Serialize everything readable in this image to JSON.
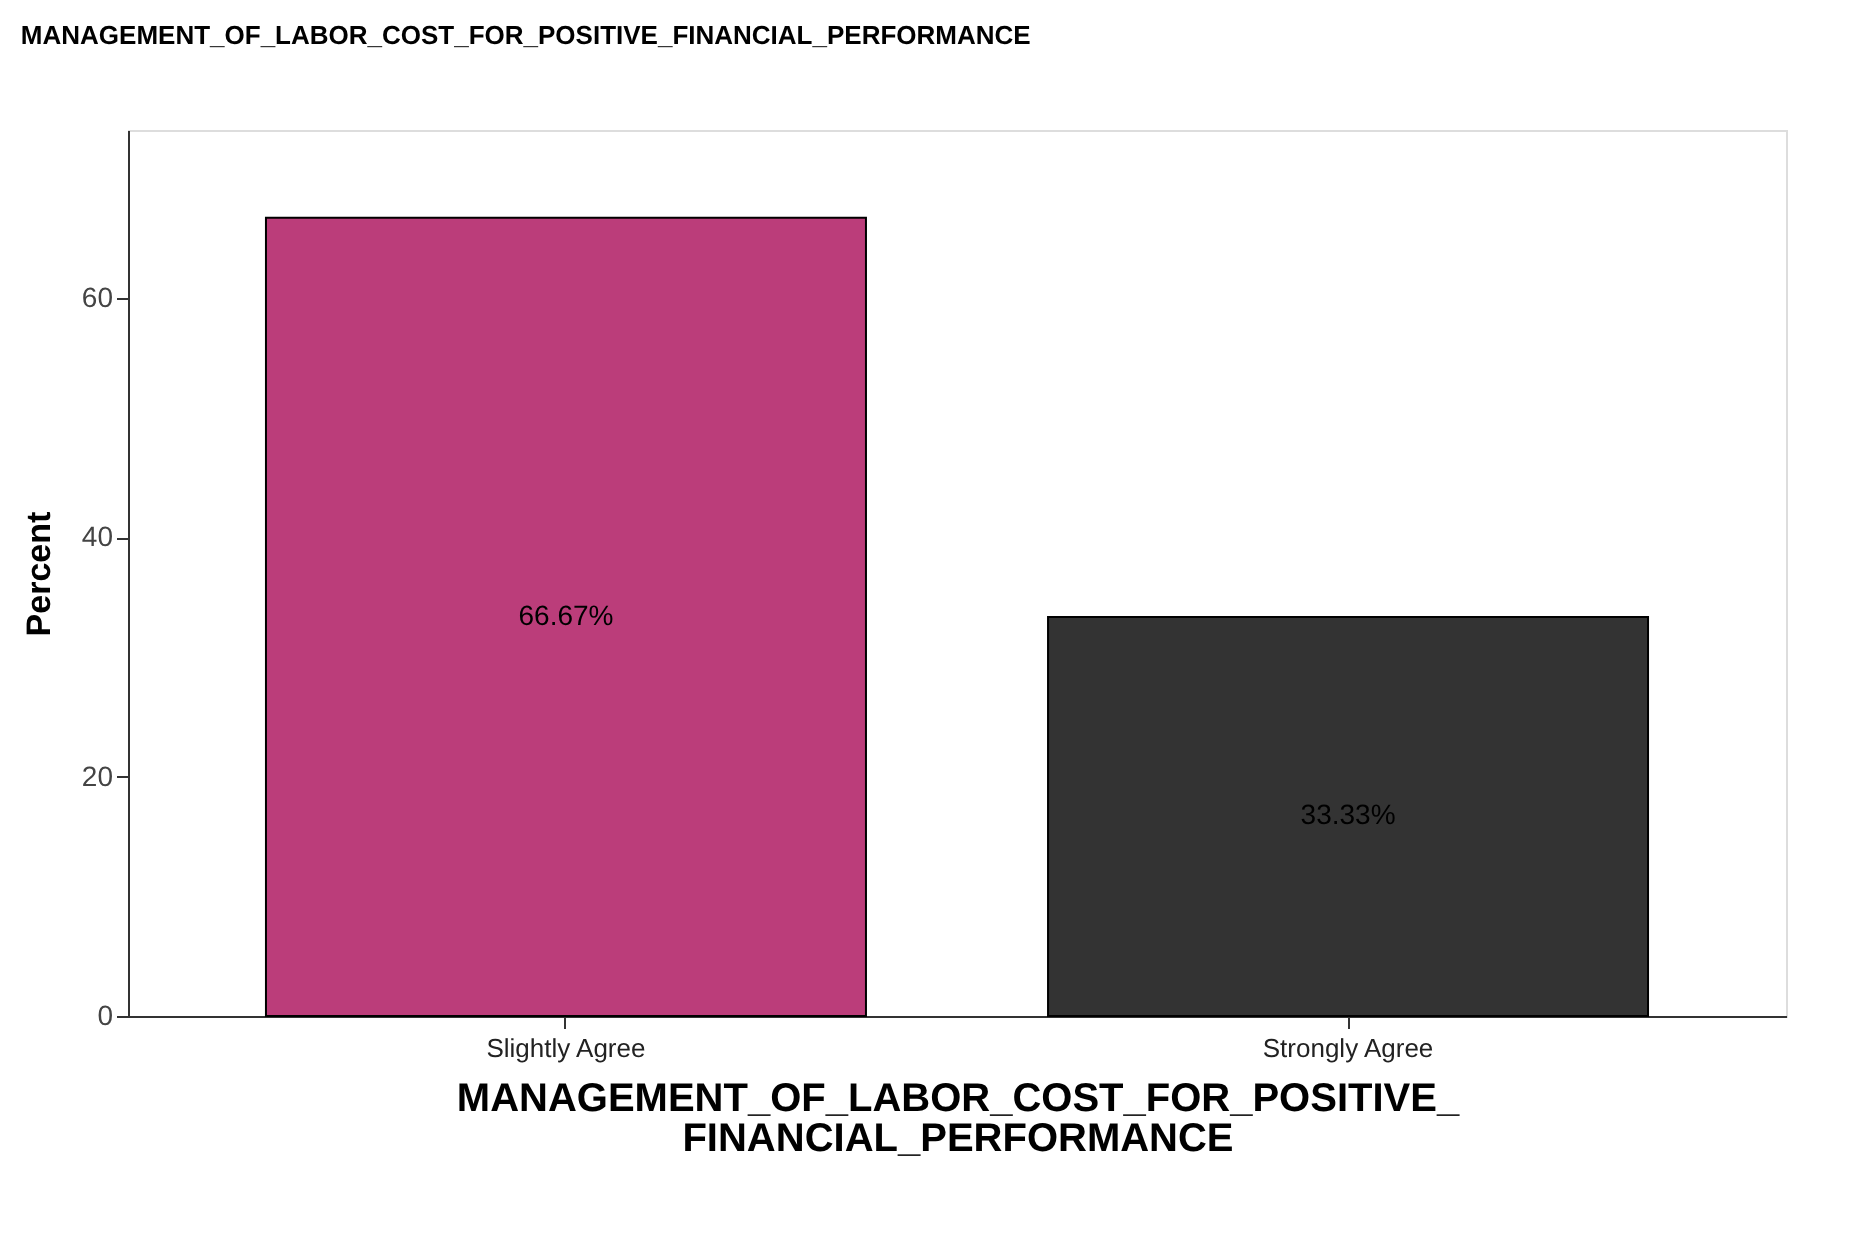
{
  "chart_data": {
    "type": "bar",
    "title": "MANAGEMENT_OF_LABOR_COST_FOR_POSITIVE_FINANCIAL_PERFORMANCE",
    "xlabel": "MANAGEMENT_OF_LABOR_COST_FOR_POSITIVE_\nFINANCIAL_PERFORMANCE",
    "ylabel": "Percent",
    "categories": [
      "Slightly Agree",
      "Strongly Agree"
    ],
    "values": [
      66.67,
      33.33
    ],
    "colors": [
      "#bb3d7a",
      "#333333"
    ],
    "value_labels": [
      "66.67%",
      "33.33%"
    ],
    "ylim": [
      0,
      74
    ],
    "yticks": [
      0,
      20,
      40,
      60
    ],
    "grid": false,
    "legend": false
  }
}
